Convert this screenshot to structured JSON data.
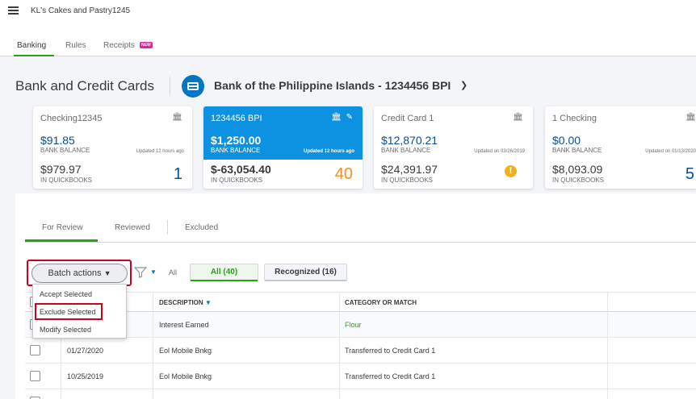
{
  "topbar": {
    "company": "KL's Cakes and Pastry1245"
  },
  "subtabs": {
    "banking": "Banking",
    "rules": "Rules",
    "receipts": "Receipts",
    "new_badge": "NEW"
  },
  "header": {
    "title": "Bank and Credit Cards",
    "account": "Bank of the Philippine Islands - 1234456 BPI"
  },
  "cards": [
    {
      "name": "Checking12345",
      "bank_balance": "$91.85",
      "bank_label": "BANK BALANCE",
      "updated": "Updated 12 hours ago",
      "qb_balance": "$979.97",
      "qb_label": "IN QUICKBOOKS",
      "count": "1"
    },
    {
      "name": "1234456 BPI",
      "bank_balance": "$1,250.00",
      "bank_label": "BANK BALANCE",
      "updated": "Updated 12 hours ago",
      "qb_balance": "$-63,054.40",
      "qb_label": "IN QUICKBOOKS",
      "count": "40"
    },
    {
      "name": "Credit Card 1",
      "bank_balance": "$12,870.21",
      "bank_label": "BANK BALANCE",
      "updated": "Updated on 03/26/2019",
      "qb_balance": "$24,391.97",
      "qb_label": "IN QUICKBOOKS",
      "warn": "!"
    },
    {
      "name": "1 Checking",
      "bank_balance": "$0.00",
      "bank_label": "BANK BALANCE",
      "updated": "Updated on 01/13/2020",
      "qb_balance": "$8,093.09",
      "qb_label": "IN QUICKBOOKS",
      "count": "5"
    }
  ],
  "review_tabs": {
    "for_review": "For Review",
    "reviewed": "Reviewed",
    "excluded": "Excluded"
  },
  "toolbar": {
    "batch_label": "Batch actions",
    "all_filter": "All",
    "pill_all": "All (40)",
    "pill_recognized": "Recognized (16)"
  },
  "batch_menu": {
    "accept": "Accept Selected",
    "exclude": "Exclude Selected",
    "modify": "Modify Selected"
  },
  "table": {
    "headers": {
      "description": "DESCRIPTION",
      "category": "CATEGORY OR MATCH"
    },
    "rows": [
      {
        "date": "",
        "description": "Interest Earned",
        "category": "Flour"
      },
      {
        "date": "01/27/2020",
        "description": "Eol Mobile Bnkg",
        "category": "Transferred to Credit Card 1"
      },
      {
        "date": "10/25/2019",
        "description": "Eol Mobile Bnkg",
        "category": "Transferred to Credit Card 1"
      }
    ]
  },
  "colors": {
    "green": "#2ca01c",
    "blue": "#0d91e1",
    "highlight": "#d0021b"
  }
}
